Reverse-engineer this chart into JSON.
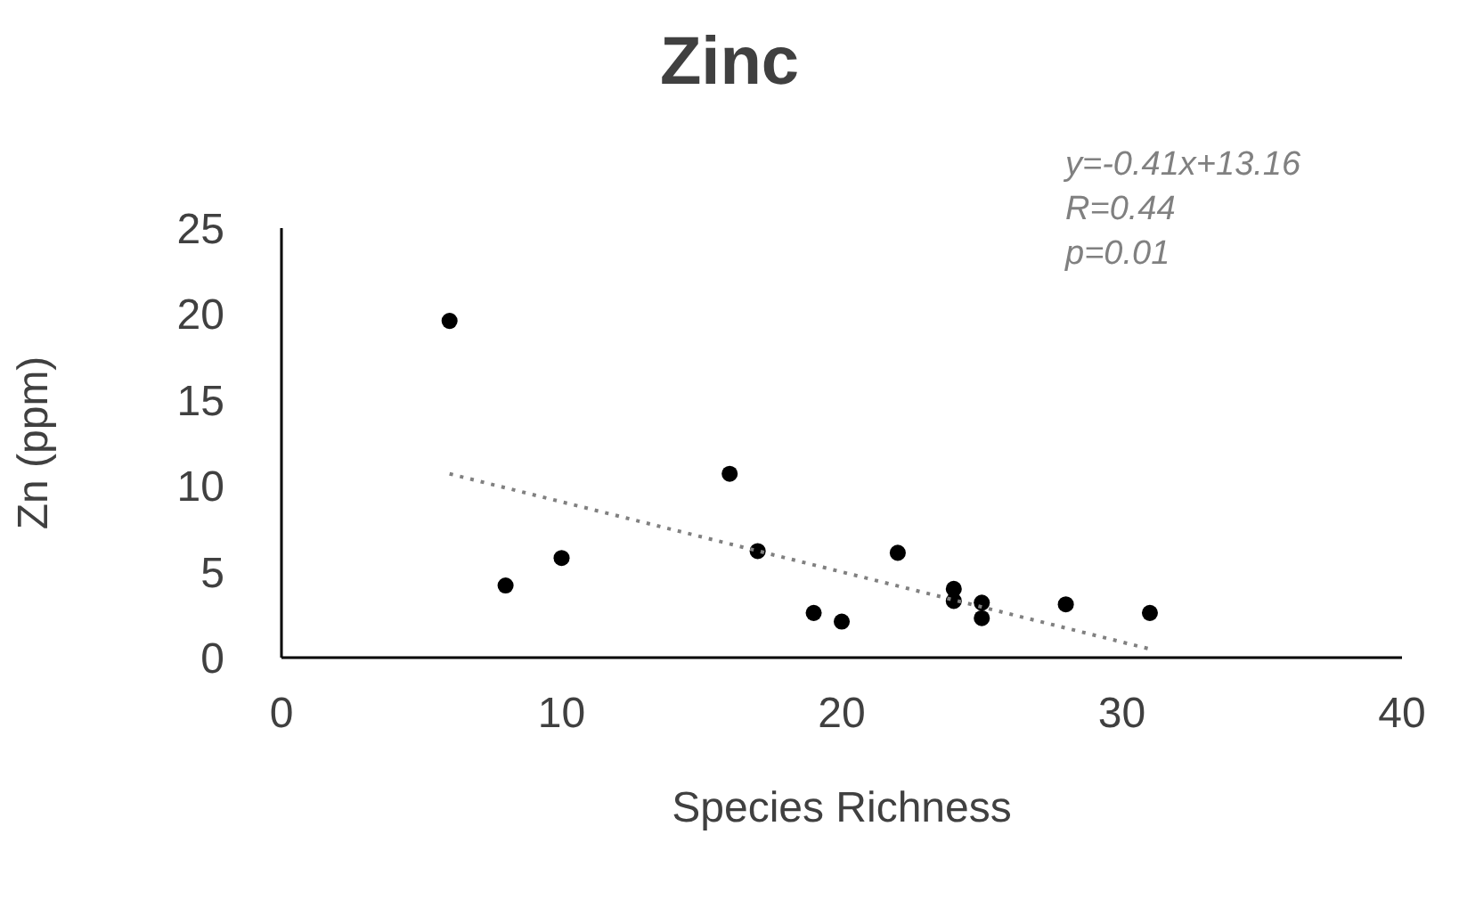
{
  "chart_data": {
    "type": "scatter",
    "title": "Zinc",
    "xlabel": "Species Richness",
    "ylabel": "Zn (ppm)",
    "xlim": [
      0,
      40
    ],
    "xticks": [
      0,
      10,
      20,
      30,
      40
    ],
    "ylim": [
      0,
      25
    ],
    "yticks": [
      0,
      5,
      10,
      15,
      20,
      25
    ],
    "grid": false,
    "legend": false,
    "marker": "circle",
    "annotations": [
      "y=-0.41x+13.16",
      "R=0.44",
      "p=0.01"
    ],
    "series": [
      {
        "color": "#000000",
        "x": [
          6,
          8,
          10,
          16,
          17,
          19,
          20,
          22,
          24,
          24,
          25,
          25,
          28,
          31
        ],
        "values": [
          19.6,
          4.2,
          5.8,
          10.7,
          6.2,
          2.6,
          2.1,
          6.1,
          4.0,
          3.3,
          3.2,
          2.3,
          3.1,
          2.6
        ]
      },
      {
        "type": "line",
        "color": "#808080",
        "line_style": "dotted",
        "marker": "none",
        "x": [
          6,
          31
        ],
        "values": [
          10.7,
          0.5
        ]
      }
    ]
  }
}
